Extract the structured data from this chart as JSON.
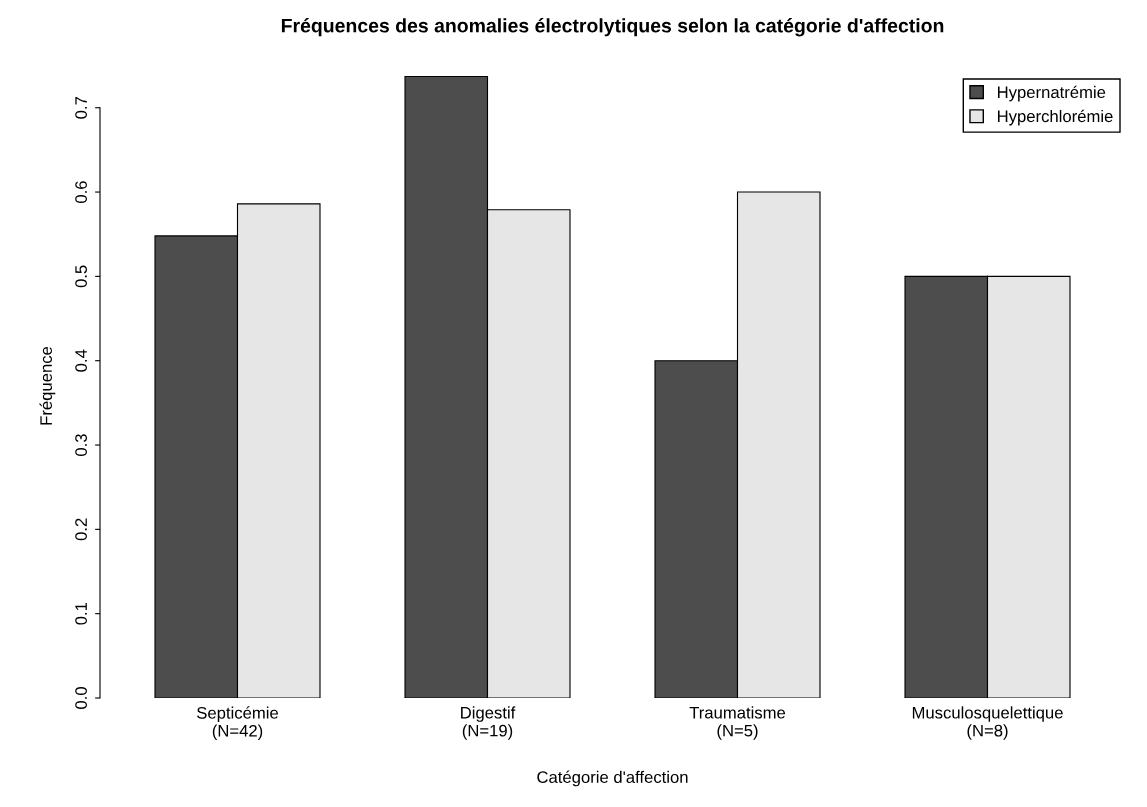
{
  "chart_data": {
    "type": "bar",
    "title": "Fréquences des anomalies électrolytiques selon la catégorie d'affection",
    "xlabel": "Catégorie d'affection",
    "ylabel": "Fréquence",
    "categories": [
      "Septicémie\n(N=42)",
      "Digestif\n(N=19)",
      "Traumatisme\n(N=5)",
      "Musculosquelettique\n(N=8)"
    ],
    "series": [
      {
        "name": "Hypernatrémie",
        "color": "#4d4d4d",
        "values": [
          0.548,
          0.737,
          0.4,
          0.5
        ]
      },
      {
        "name": "Hyperchlorémie",
        "color": "#e6e6e6",
        "values": [
          0.586,
          0.579,
          0.6,
          0.5
        ]
      }
    ],
    "ylim": [
      0,
      0.74
    ],
    "yticks": [
      {
        "value": 0,
        "label": "0.0"
      },
      0.1,
      0.2,
      0.3,
      0.4,
      0.5,
      0.6,
      0.7
    ],
    "grid": false,
    "legend": "top right"
  }
}
